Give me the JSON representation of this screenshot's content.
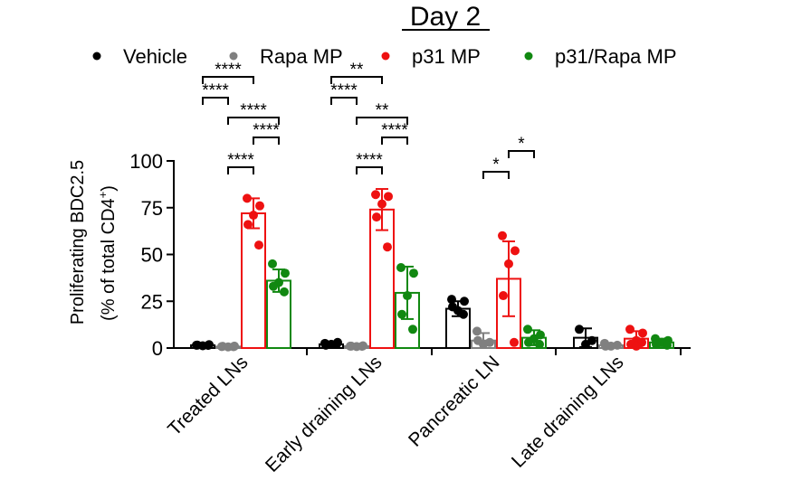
{
  "chart_data": {
    "type": "bar",
    "title": "Day 2",
    "ylabel_line1": "Proliferating BDC2.5",
    "ylabel_line2": "(% of total CD4",
    "ylabel_sup": "+",
    "ylabel_close": ")",
    "ylim": [
      0,
      100
    ],
    "yticks": [
      0,
      25,
      50,
      75,
      100
    ],
    "ytick_labels": [
      "0",
      "25",
      "50",
      "75",
      "100"
    ],
    "categories": [
      "Treated LNs",
      "Early draining LNs",
      "Pancreatic LN",
      "Late draining LNs"
    ],
    "legend": [
      {
        "name": "Vehicle",
        "color": "#000000"
      },
      {
        "name": "Rapa MP",
        "color": "#808080"
      },
      {
        "name": "p31 MP",
        "color": "#ee1111"
      },
      {
        "name": "p31/Rapa MP",
        "color": "#118811"
      }
    ],
    "series": [
      {
        "name": "Vehicle",
        "color": "#000000",
        "means": [
          1.5,
          2,
          21,
          5.5
        ],
        "sd": [
          0.5,
          0.8,
          4,
          5
        ],
        "points": [
          [
            1.5,
            1.8,
            1.2,
            1.6,
            1.4
          ],
          [
            2.5,
            3,
            2,
            1.5,
            2.2
          ],
          [
            26,
            25,
            20,
            22,
            18
          ],
          [
            10,
            4,
            2
          ]
        ]
      },
      {
        "name": "Rapa MP",
        "color": "#808080",
        "means": [
          0.8,
          1,
          4,
          1.5
        ],
        "sd": [
          0.3,
          0.4,
          4,
          1
        ],
        "points": [
          [
            0.8,
            1,
            0.6,
            0.9,
            0.7
          ],
          [
            1,
            1.2,
            0.8,
            1,
            0.9
          ],
          [
            9,
            3,
            2,
            4
          ],
          [
            2.5,
            1.5,
            1,
            1
          ]
        ]
      },
      {
        "name": "p31 MP",
        "color": "#ee1111",
        "means": [
          72,
          74,
          37,
          5
        ],
        "sd": [
          8,
          11,
          20,
          4
        ],
        "points": [
          [
            80,
            76,
            71,
            66,
            55
          ],
          [
            82,
            81,
            77,
            70,
            54
          ],
          [
            60,
            52,
            45,
            28,
            3
          ],
          [
            10,
            8,
            4,
            2,
            3,
            1
          ]
        ]
      },
      {
        "name": "p31/Rapa MP",
        "color": "#118811",
        "means": [
          36,
          29.5,
          5.5,
          3
        ],
        "sd": [
          6,
          14,
          4,
          2
        ],
        "points": [
          [
            45,
            40,
            35,
            33,
            30
          ],
          [
            43,
            40,
            28,
            18,
            10
          ],
          [
            10,
            7,
            5,
            3,
            2
          ],
          [
            5,
            4,
            3,
            2,
            1.5
          ]
        ]
      }
    ],
    "significance": [
      {
        "group": 0,
        "from": 0,
        "to": 2,
        "label": "****",
        "level": 4
      },
      {
        "group": 0,
        "from": 0,
        "to": 1,
        "label": "****",
        "level": 3
      },
      {
        "group": 0,
        "from": 1,
        "to": 3,
        "label": "****",
        "level": 2
      },
      {
        "group": 0,
        "from": 2,
        "to": 3,
        "label": "****",
        "level": 1
      },
      {
        "group": 0,
        "from": 1,
        "to": 2,
        "label": "****",
        "level": 0
      },
      {
        "group": 1,
        "from": 0,
        "to": 2,
        "label": "**",
        "level": 4
      },
      {
        "group": 1,
        "from": 0,
        "to": 1,
        "label": "****",
        "level": 3
      },
      {
        "group": 1,
        "from": 1,
        "to": 3,
        "label": "**",
        "level": 2
      },
      {
        "group": 1,
        "from": 2,
        "to": 3,
        "label": "****",
        "level": 1
      },
      {
        "group": 1,
        "from": 1,
        "to": 2,
        "label": "****",
        "level": 0
      },
      {
        "group": 2,
        "from": 1,
        "to": 2,
        "label": "*",
        "level": 0
      },
      {
        "group": 2,
        "from": 2,
        "to": 3,
        "label": "*",
        "level": 1
      }
    ]
  }
}
